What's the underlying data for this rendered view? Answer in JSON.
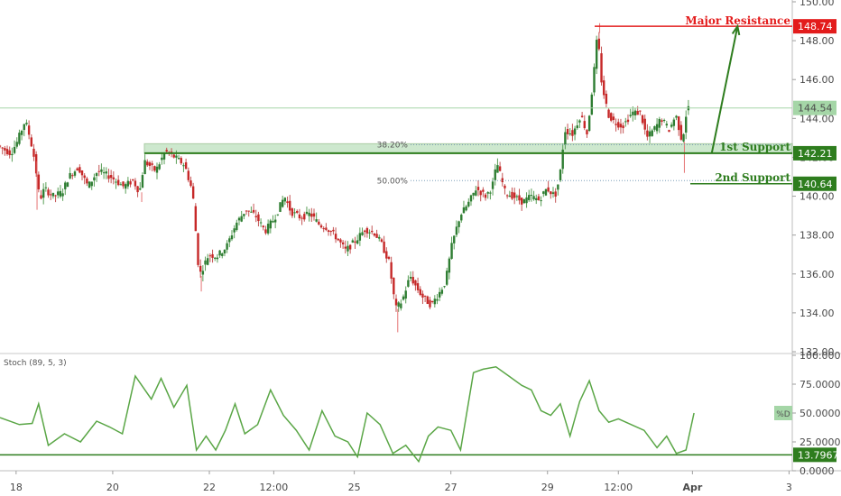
{
  "chart_data": [
    {
      "type": "candlestick",
      "ylim": [
        132,
        150
      ],
      "xlim": [
        0,
        24.6
      ],
      "price_ticks": [
        "132.00",
        "134.00",
        "136.00",
        "138.00",
        "140.00",
        "142.00",
        "144.00",
        "146.00",
        "148.00",
        "150.00"
      ],
      "x_ticks": [
        {
          "label": "18",
          "t": 0.5
        },
        {
          "label": "20",
          "t": 3.5
        },
        {
          "label": "22",
          "t": 6.5
        },
        {
          "label": "12:00",
          "t": 8.5
        },
        {
          "label": "25",
          "t": 11
        },
        {
          "label": "27",
          "t": 14
        },
        {
          "label": "29",
          "t": 17
        },
        {
          "label": "12:00",
          "t": 19.2
        },
        {
          "label": "Apr",
          "t": 21.5
        },
        {
          "label": "3",
          "t": 24.5
        }
      ],
      "price_path": [
        [
          0,
          142.6
        ],
        [
          0.4,
          142.2
        ],
        [
          0.6,
          142.8
        ],
        [
          0.85,
          143.9
        ],
        [
          1.0,
          143.0
        ],
        [
          1.15,
          141.8
        ],
        [
          1.3,
          139.8
        ],
        [
          1.45,
          140.4
        ],
        [
          1.7,
          140.0
        ],
        [
          2.0,
          140.2
        ],
        [
          2.2,
          141.0
        ],
        [
          2.5,
          141.5
        ],
        [
          2.8,
          140.5
        ],
        [
          3.1,
          141.3
        ],
        [
          3.5,
          141.0
        ],
        [
          3.9,
          140.5
        ],
        [
          4.2,
          140.8
        ],
        [
          4.4,
          140.2
        ],
        [
          4.55,
          141.8
        ],
        [
          4.9,
          141.3
        ],
        [
          5.2,
          142.3
        ],
        [
          5.5,
          142.0
        ],
        [
          5.8,
          141.6
        ],
        [
          6.05,
          140.2
        ],
        [
          6.25,
          135.9
        ],
        [
          6.55,
          137.0
        ],
        [
          6.8,
          136.9
        ],
        [
          7.1,
          137.4
        ],
        [
          7.4,
          138.6
        ],
        [
          7.7,
          139.3
        ],
        [
          8.0,
          139.0
        ],
        [
          8.3,
          138.2
        ],
        [
          8.6,
          138.9
        ],
        [
          8.9,
          140.0
        ],
        [
          9.1,
          139.2
        ],
        [
          9.4,
          138.9
        ],
        [
          9.7,
          139.1
        ],
        [
          10.0,
          138.5
        ],
        [
          10.2,
          138.4
        ],
        [
          10.5,
          137.9
        ],
        [
          10.8,
          137.2
        ],
        [
          11.1,
          137.7
        ],
        [
          11.4,
          138.3
        ],
        [
          11.7,
          138.1
        ],
        [
          11.9,
          137.6
        ],
        [
          12.15,
          136.6
        ],
        [
          12.35,
          134.2
        ],
        [
          12.55,
          134.6
        ],
        [
          12.8,
          135.9
        ],
        [
          13.0,
          135.3
        ],
        [
          13.2,
          134.8
        ],
        [
          13.45,
          134.4
        ],
        [
          13.7,
          135.0
        ],
        [
          13.9,
          135.6
        ],
        [
          14.1,
          137.5
        ],
        [
          14.35,
          139.0
        ],
        [
          14.6,
          139.6
        ],
        [
          14.85,
          140.4
        ],
        [
          15.15,
          140.0
        ],
        [
          15.35,
          140.5
        ],
        [
          15.5,
          141.7
        ],
        [
          15.75,
          140.2
        ],
        [
          16.0,
          140.0
        ],
        [
          16.3,
          139.7
        ],
        [
          16.55,
          140.0
        ],
        [
          16.8,
          139.8
        ],
        [
          17.05,
          140.4
        ],
        [
          17.3,
          140.0
        ],
        [
          17.45,
          141.0
        ],
        [
          17.6,
          143.4
        ],
        [
          17.85,
          143.2
        ],
        [
          18.1,
          144.2
        ],
        [
          18.3,
          143.2
        ],
        [
          18.5,
          146.2
        ],
        [
          18.62,
          148.4
        ],
        [
          18.75,
          145.8
        ],
        [
          18.95,
          144.2
        ],
        [
          19.15,
          143.8
        ],
        [
          19.4,
          143.6
        ],
        [
          19.7,
          144.3
        ],
        [
          19.95,
          144.3
        ],
        [
          20.15,
          143.0
        ],
        [
          20.4,
          143.5
        ],
        [
          20.6,
          144.0
        ],
        [
          20.85,
          143.4
        ],
        [
          21.05,
          144.2
        ],
        [
          21.25,
          142.8
        ],
        [
          21.4,
          144.54
        ]
      ],
      "wick_events": [
        {
          "t": 1.15,
          "low": 139.3
        },
        {
          "t": 4.4,
          "low": 139.7
        },
        {
          "t": 6.25,
          "low": 135.1
        },
        {
          "t": 12.35,
          "low": 133.0
        },
        {
          "t": 21.25,
          "low": 141.2
        },
        {
          "t": 18.62,
          "high": 148.9
        }
      ],
      "levels": [
        {
          "label": "Major Resistance",
          "value": 148.74,
          "value_label": "148.74",
          "color": "#e31c1c"
        },
        {
          "label": "1st Support",
          "value": 142.21,
          "value_label": "142.21",
          "color": "#2e7d1e"
        },
        {
          "label": "2nd Support",
          "value": 140.64,
          "value_label": "140.64",
          "color": "#2e7d1e"
        }
      ],
      "support_zone": [
        142.2,
        142.7
      ],
      "fib_levels": [
        {
          "label": "38.20%",
          "value": 142.65
        },
        {
          "label": "50.00%",
          "value": 140.8
        }
      ],
      "last_price": {
        "value": 144.54,
        "label": "144.54"
      },
      "projection": {
        "from": [
          22.1,
          142.21
        ],
        "to": [
          22.9,
          148.74
        ]
      }
    },
    {
      "type": "line",
      "title": "Stoch (89, 5, 3)",
      "ylim": [
        0,
        100
      ],
      "ticks": [
        "0.0000",
        "25.0000",
        "50.0000",
        "75.0000",
        "100.0000"
      ],
      "series": [
        {
          "name": "%D",
          "label": "%D",
          "value": 50,
          "x": [
            0,
            0.6,
            1.0,
            1.2,
            1.5,
            2.0,
            2.5,
            3.0,
            3.4,
            3.8,
            4.2,
            4.7,
            5.0,
            5.4,
            5.8,
            6.1,
            6.4,
            6.7,
            7.0,
            7.3,
            7.6,
            8.0,
            8.4,
            8.8,
            9.2,
            9.6,
            10.0,
            10.4,
            10.8,
            11.1,
            11.4,
            11.8,
            12.2,
            12.6,
            13.0,
            13.3,
            13.6,
            14.0,
            14.3,
            14.7,
            15.0,
            15.4,
            15.8,
            16.2,
            16.5,
            16.8,
            17.1,
            17.4,
            17.7,
            18.0,
            18.3,
            18.6,
            18.9,
            19.2,
            19.6,
            20.0,
            20.4,
            20.7,
            21.0,
            21.3,
            21.55
          ],
          "y": [
            46,
            40,
            41,
            58,
            22,
            32,
            25,
            43,
            38,
            32,
            82,
            62,
            80,
            55,
            74,
            18,
            30,
            18,
            35,
            58,
            32,
            40,
            70,
            48,
            35,
            18,
            52,
            30,
            25,
            12,
            50,
            40,
            15,
            22,
            8,
            30,
            38,
            35,
            18,
            85,
            88,
            90,
            82,
            74,
            70,
            52,
            48,
            58,
            30,
            60,
            78,
            52,
            42,
            45,
            40,
            35,
            20,
            30,
            15,
            18,
            50
          ]
        }
      ],
      "reference": {
        "value": 13.7967,
        "label": "13.7967"
      }
    }
  ]
}
